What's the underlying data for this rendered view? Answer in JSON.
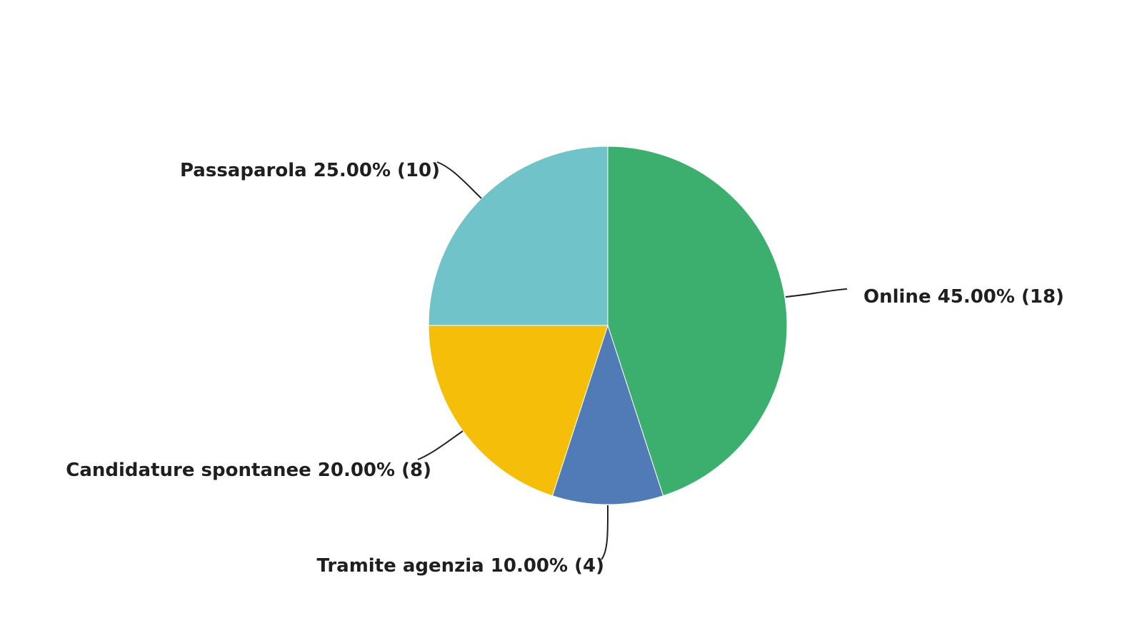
{
  "chart_data": {
    "type": "pie",
    "title": "",
    "slices": [
      {
        "label": "Online",
        "percent": "45.00%",
        "count": "(18)",
        "value": 18,
        "color": "#3caf6e"
      },
      {
        "label": "Tramite agenzia",
        "percent": "10.00%",
        "count": "(4)",
        "value": 4,
        "color": "#507bb6"
      },
      {
        "label": "Candidature spontanee",
        "percent": "20.00%",
        "count": "(8)",
        "value": 8,
        "color": "#f5be08"
      },
      {
        "label": "Passaparola",
        "percent": "25.00%",
        "count": "(10)",
        "value": 10,
        "color": "#70c3c9"
      }
    ]
  }
}
